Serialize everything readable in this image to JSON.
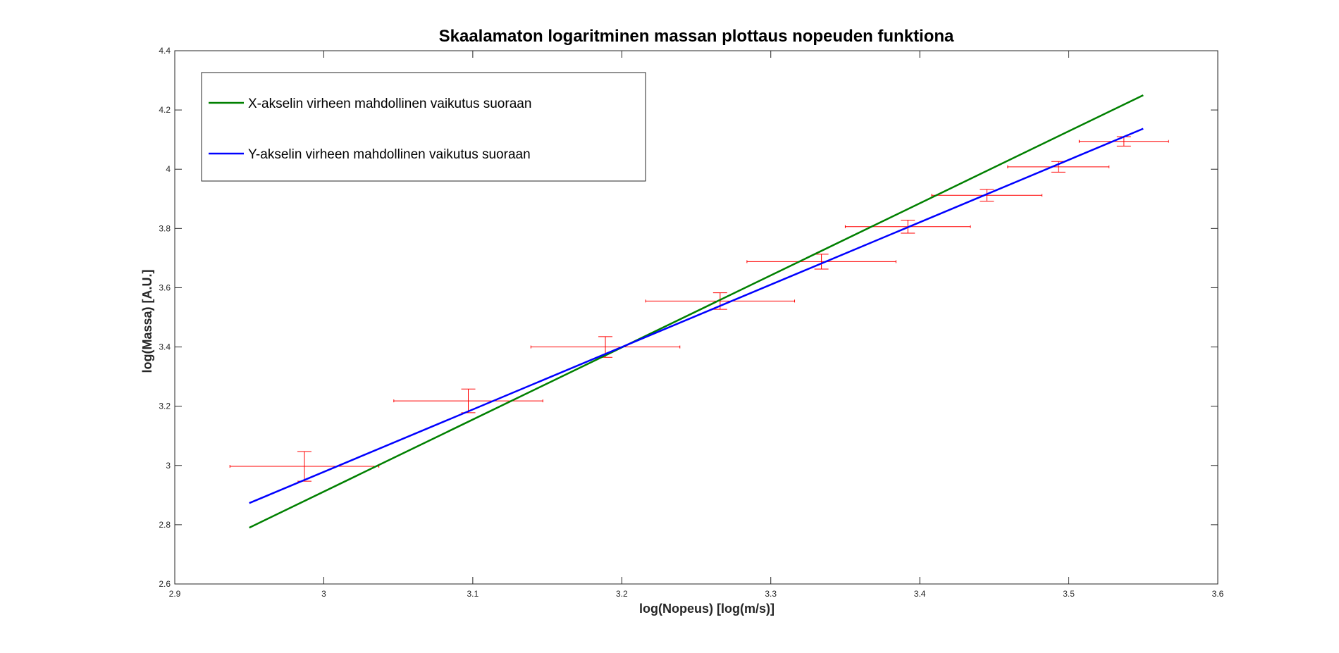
{
  "chart_data": {
    "type": "scatter",
    "title": "Skaalamaton logaritminen massan plottaus nopeuden funktiona",
    "xlabel": "log(Nopeus) [log(m/s)]",
    "ylabel": "log(Massa) [A.U.]",
    "xlim": [
      2.9,
      3.6
    ],
    "ylim": [
      2.6,
      4.4
    ],
    "xticks": [
      2.9,
      3.0,
      3.1,
      3.2,
      3.3,
      3.4,
      3.5,
      3.6
    ],
    "xtick_labels": [
      "2.9",
      "3",
      "3.1",
      "3.2",
      "3.3",
      "3.4",
      "3.5",
      "3.6"
    ],
    "yticks": [
      2.6,
      2.8,
      3.0,
      3.2,
      3.4,
      3.6,
      3.8,
      4.0,
      4.2,
      4.4
    ],
    "ytick_labels": [
      "2.6",
      "2.8",
      "3",
      "3.2",
      "3.4",
      "3.6",
      "3.8",
      "4",
      "4.2",
      "4.4"
    ],
    "grid": false,
    "legend_position": "top-left",
    "errorbar_color": "#ff0000",
    "errorbars": [
      {
        "x": 2.987,
        "y": 2.997,
        "xerr": 0.05,
        "yerr": 0.05
      },
      {
        "x": 3.097,
        "y": 3.218,
        "xerr": 0.05,
        "yerr": 0.04
      },
      {
        "x": 3.189,
        "y": 3.4,
        "xerr": 0.05,
        "yerr": 0.035
      },
      {
        "x": 3.266,
        "y": 3.555,
        "xerr": 0.05,
        "yerr": 0.028
      },
      {
        "x": 3.334,
        "y": 3.688,
        "xerr": 0.05,
        "yerr": 0.025
      },
      {
        "x": 3.392,
        "y": 3.806,
        "xerr": 0.042,
        "yerr": 0.022
      },
      {
        "x": 3.445,
        "y": 3.912,
        "xerr": 0.037,
        "yerr": 0.02
      },
      {
        "x": 3.493,
        "y": 4.008,
        "xerr": 0.034,
        "yerr": 0.018
      },
      {
        "x": 3.537,
        "y": 4.094,
        "xerr": 0.03,
        "yerr": 0.016
      }
    ],
    "series": [
      {
        "name": "X-akselin virheen mahdollinen vaikutus suoraan",
        "color": "#008000",
        "x": [
          2.95,
          3.55
        ],
        "y": [
          2.79,
          4.25
        ]
      },
      {
        "name": "Y-akselin virheen mahdollinen vaikutus suoraan",
        "color": "#0000ff",
        "x": [
          2.95,
          3.55
        ],
        "y": [
          2.873,
          4.137
        ]
      }
    ]
  }
}
